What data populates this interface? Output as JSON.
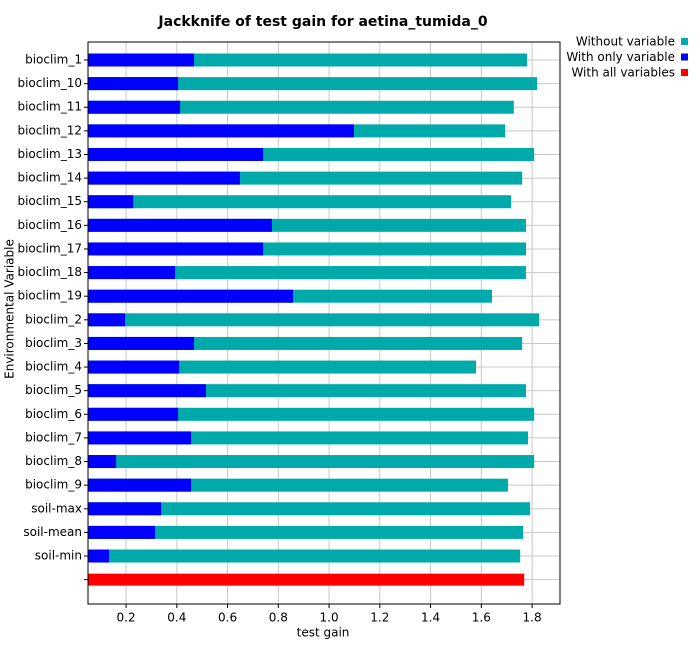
{
  "chart_data": {
    "type": "bar",
    "orientation": "horizontal",
    "title": "Jackknife of test gain for aetina_tumida_0",
    "x_label": "test gain",
    "y_label": "Environmental Variable",
    "categories": [
      "bioclim_1",
      "bioclim_10",
      "bioclim_11",
      "bioclim_12",
      "bioclim_13",
      "bioclim_14",
      "bioclim_15",
      "bioclim_16",
      "bioclim_17",
      "bioclim_18",
      "bioclim_19",
      "bioclim_2",
      "bioclim_3",
      "bioclim_4",
      "bioclim_5",
      "bioclim_6",
      "bioclim_7",
      "bioclim_8",
      "bioclim_9",
      "soil-max",
      "soil-mean",
      "soil-min",
      null
    ],
    "series": [
      {
        "name": "Without variable",
        "color": "#00aaaa",
        "values": [
          1.78,
          1.82,
          1.728,
          1.694,
          1.808,
          1.761,
          1.717,
          1.776,
          1.776,
          1.776,
          1.642,
          1.828,
          1.761,
          1.579,
          1.776,
          1.808,
          1.784,
          1.808,
          1.705,
          1.792,
          1.765,
          1.753,
          null
        ]
      },
      {
        "name": "With only variable",
        "color": "#0000ff",
        "values": [
          0.468,
          0.405,
          0.413,
          1.098,
          0.74,
          0.649,
          0.228,
          0.775,
          0.74,
          0.393,
          0.858,
          0.196,
          0.468,
          0.409,
          0.515,
          0.405,
          0.456,
          0.161,
          0.456,
          0.338,
          0.314,
          0.133,
          null
        ]
      },
      {
        "name": "With all variables",
        "color": "#ff0000",
        "values": [
          null,
          null,
          null,
          null,
          null,
          null,
          null,
          null,
          null,
          null,
          null,
          null,
          null,
          null,
          null,
          null,
          null,
          null,
          null,
          null,
          null,
          null,
          1.769
        ]
      }
    ],
    "xlim": [
      0.05,
      1.91
    ],
    "xticks": [
      0.2,
      0.4,
      0.6,
      0.8,
      {
        "value": 1,
        "label": "1.0"
      },
      1.2,
      1.4,
      1.6,
      1.8
    ],
    "grid": true,
    "legend": "upper right"
  }
}
